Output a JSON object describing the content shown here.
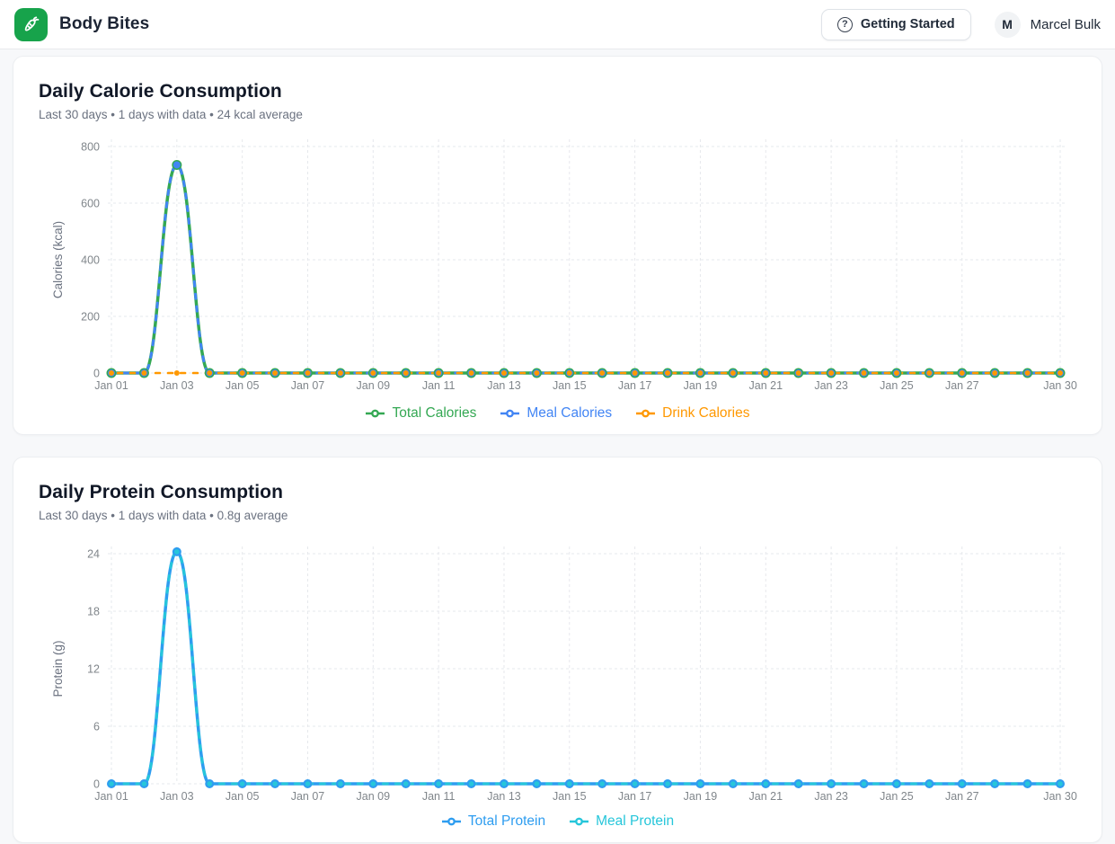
{
  "header": {
    "app_name": "Body Bites",
    "brand_color": "#17a34b",
    "getting_started_label": "Getting Started",
    "user": {
      "initial": "M",
      "name": "Marcel Bulk"
    }
  },
  "cards": [
    {
      "title": "Daily Calorie Consumption",
      "subtitle": "Last 30 days • 1 days with data • 24 kcal average"
    },
    {
      "title": "Daily Protein Consumption",
      "subtitle": "Last 30 days • 1 days with data • 0.8g average"
    }
  ],
  "chart_data": [
    {
      "type": "line",
      "title": "Daily Calorie Consumption",
      "subtitle": "Last 30 days • 1 days with data • 24 kcal average",
      "ylabel": "Calories (kcal)",
      "ylim": [
        0,
        800
      ],
      "yticks": [
        0,
        200,
        400,
        600,
        800
      ],
      "grid": "dashed",
      "legend_position": "bottom",
      "n_points": 30,
      "xlabels": [
        "Jan 01",
        "Jan 03",
        "Jan 05",
        "Jan 07",
        "Jan 09",
        "Jan 11",
        "Jan 13",
        "Jan 15",
        "Jan 17",
        "Jan 19",
        "Jan 21",
        "Jan 23",
        "Jan 25",
        "Jan 27",
        "Jan 30"
      ],
      "xlabel_indices": [
        0,
        2,
        4,
        6,
        8,
        10,
        12,
        14,
        16,
        18,
        20,
        22,
        24,
        26,
        29
      ],
      "series": [
        {
          "name": "Total Calories",
          "color": "#34a853",
          "dash": null,
          "dashoffset": 0,
          "width": 3.5,
          "marker_r": 5.5,
          "values": [
            0,
            0,
            735,
            0,
            0,
            0,
            0,
            0,
            0,
            0,
            0,
            0,
            0,
            0,
            0,
            0,
            0,
            0,
            0,
            0,
            0,
            0,
            0,
            0,
            0,
            0,
            0,
            0,
            0,
            0
          ]
        },
        {
          "name": "Meal Calories",
          "color": "#4285f4",
          "dash": "5 9",
          "dashoffset": 0,
          "width": 3,
          "marker_r": 4,
          "values": [
            0,
            0,
            735,
            0,
            0,
            0,
            0,
            0,
            0,
            0,
            0,
            0,
            0,
            0,
            0,
            0,
            0,
            0,
            0,
            0,
            0,
            0,
            0,
            0,
            0,
            0,
            0,
            0,
            0,
            0
          ]
        },
        {
          "name": "Drink Calories",
          "color": "#ff9800",
          "dash": "5 9",
          "dashoffset": 7,
          "width": 2.6,
          "marker_r": 3,
          "values": [
            0,
            0,
            0,
            0,
            0,
            0,
            0,
            0,
            0,
            0,
            0,
            0,
            0,
            0,
            0,
            0,
            0,
            0,
            0,
            0,
            0,
            0,
            0,
            0,
            0,
            0,
            0,
            0,
            0,
            0
          ]
        }
      ]
    },
    {
      "type": "line",
      "title": "Daily Protein Consumption",
      "subtitle": "Last 30 days • 1 days with data • 0.8g average",
      "ylabel": "Protein (g)",
      "ylim": [
        0,
        24
      ],
      "yticks": [
        0,
        6,
        12,
        18,
        24
      ],
      "grid": "dashed",
      "legend_position": "bottom",
      "n_points": 30,
      "xlabels": [
        "Jan 01",
        "Jan 03",
        "Jan 05",
        "Jan 07",
        "Jan 09",
        "Jan 11",
        "Jan 13",
        "Jan 15",
        "Jan 17",
        "Jan 19",
        "Jan 21",
        "Jan 23",
        "Jan 25",
        "Jan 27",
        "Jan 30"
      ],
      "xlabel_indices": [
        0,
        2,
        4,
        6,
        8,
        10,
        12,
        14,
        16,
        18,
        20,
        22,
        24,
        26,
        29
      ],
      "series": [
        {
          "name": "Total Protein",
          "color": "#2e9df0",
          "dash": null,
          "dashoffset": 0,
          "width": 3.5,
          "marker_r": 5,
          "values": [
            0,
            0,
            24.2,
            0,
            0,
            0,
            0,
            0,
            0,
            0,
            0,
            0,
            0,
            0,
            0,
            0,
            0,
            0,
            0,
            0,
            0,
            0,
            0,
            0,
            0,
            0,
            0,
            0,
            0,
            0
          ]
        },
        {
          "name": "Meal Protein",
          "color": "#26c6da",
          "dash": "5 9",
          "dashoffset": 0,
          "width": 3,
          "marker_r": 2.8,
          "values": [
            0,
            0,
            24.2,
            0,
            0,
            0,
            0,
            0,
            0,
            0,
            0,
            0,
            0,
            0,
            0,
            0,
            0,
            0,
            0,
            0,
            0,
            0,
            0,
            0,
            0,
            0,
            0,
            0,
            0,
            0
          ]
        }
      ]
    }
  ]
}
